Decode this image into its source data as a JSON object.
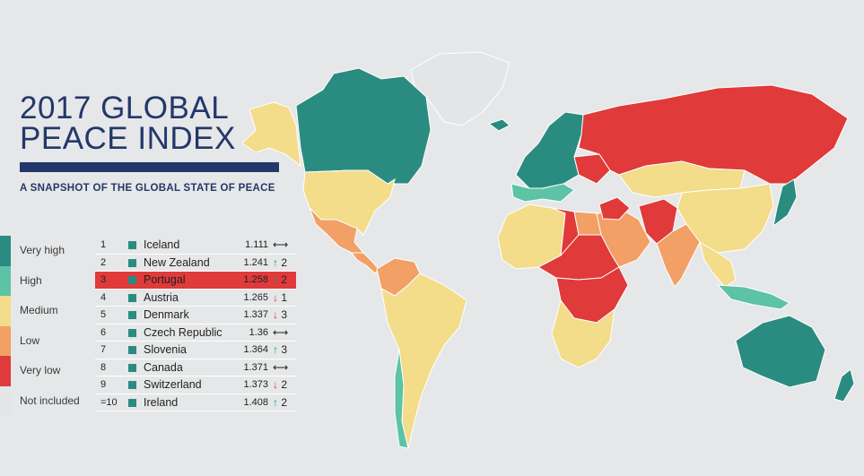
{
  "title_line1": "2017 GLOBAL",
  "title_line2": "PEACE INDEX",
  "subtitle": "A SNAPSHOT OF THE GLOBAL STATE OF PEACE",
  "legend": [
    {
      "label": "Very high",
      "color": "#2a8c80"
    },
    {
      "label": "High",
      "color": "#5cc3a6"
    },
    {
      "label": "Medium",
      "color": "#f3dc8a"
    },
    {
      "label": "Low",
      "color": "#f2a066"
    },
    {
      "label": "Very low",
      "color": "#e03a3a"
    },
    {
      "label": "Not included",
      "color": "#e4e5e6"
    }
  ],
  "rankings": [
    {
      "rank": "1",
      "country": "Iceland",
      "score": "1.111",
      "trend": "same",
      "change": ""
    },
    {
      "rank": "2",
      "country": "New Zealand",
      "score": "1.241",
      "trend": "up",
      "change": "2"
    },
    {
      "rank": "3",
      "country": "Portugal",
      "score": "1.258",
      "trend": "up",
      "change": "2",
      "highlight": true
    },
    {
      "rank": "4",
      "country": "Austria",
      "score": "1.265",
      "trend": "down",
      "change": "1"
    },
    {
      "rank": "5",
      "country": "Denmark",
      "score": "1.337",
      "trend": "down",
      "change": "3"
    },
    {
      "rank": "6",
      "country": "Czech Republic",
      "score": "1.36",
      "trend": "same",
      "change": ""
    },
    {
      "rank": "7",
      "country": "Slovenia",
      "score": "1.364",
      "trend": "up",
      "change": "3"
    },
    {
      "rank": "8",
      "country": "Canada",
      "score": "1.371",
      "trend": "same",
      "change": ""
    },
    {
      "rank": "9",
      "country": "Switzerland",
      "score": "1.373",
      "trend": "down",
      "change": "2"
    },
    {
      "rank": "=10",
      "country": "Ireland",
      "score": "1.408",
      "trend": "up",
      "change": "2"
    }
  ],
  "colors": {
    "very_high": "#2a8c80",
    "high": "#5cc3a6",
    "medium": "#f3dc8a",
    "low": "#f2a066",
    "very_low": "#e03a3a",
    "not_included": "#e4e5e6",
    "title": "#23376a",
    "background": "#e6e7e8"
  },
  "map_regions": [
    {
      "name": "greenland",
      "level": "not_included"
    },
    {
      "name": "alaska",
      "level": "medium"
    },
    {
      "name": "canada",
      "level": "very_high"
    },
    {
      "name": "usa",
      "level": "medium"
    },
    {
      "name": "mexico",
      "level": "low"
    },
    {
      "name": "central-america",
      "level": "low"
    },
    {
      "name": "colombia-venezuela",
      "level": "low"
    },
    {
      "name": "south-america",
      "level": "medium"
    },
    {
      "name": "chile-uruguay",
      "level": "high"
    },
    {
      "name": "iceland",
      "level": "very_high"
    },
    {
      "name": "western-europe",
      "level": "very_high"
    },
    {
      "name": "southern-europe",
      "level": "high"
    },
    {
      "name": "ukraine",
      "level": "very_low"
    },
    {
      "name": "russia",
      "level": "very_low"
    },
    {
      "name": "kazakhstan-mongolia",
      "level": "medium"
    },
    {
      "name": "china",
      "level": "medium"
    },
    {
      "name": "north-africa",
      "level": "medium"
    },
    {
      "name": "libya",
      "level": "very_low"
    },
    {
      "name": "egypt",
      "level": "low"
    },
    {
      "name": "middle-east",
      "level": "low"
    },
    {
      "name": "iraq-syria",
      "level": "very_low"
    },
    {
      "name": "afghanistan-pakistan",
      "level": "very_low"
    },
    {
      "name": "india",
      "level": "low"
    },
    {
      "name": "southeast-asia",
      "level": "medium"
    },
    {
      "name": "japan",
      "level": "very_high"
    },
    {
      "name": "sahel",
      "level": "very_low"
    },
    {
      "name": "central-africa",
      "level": "very_low"
    },
    {
      "name": "southern-africa",
      "level": "medium"
    },
    {
      "name": "indonesia",
      "level": "high"
    },
    {
      "name": "australia",
      "level": "very_high"
    },
    {
      "name": "new-zealand",
      "level": "very_high"
    }
  ]
}
